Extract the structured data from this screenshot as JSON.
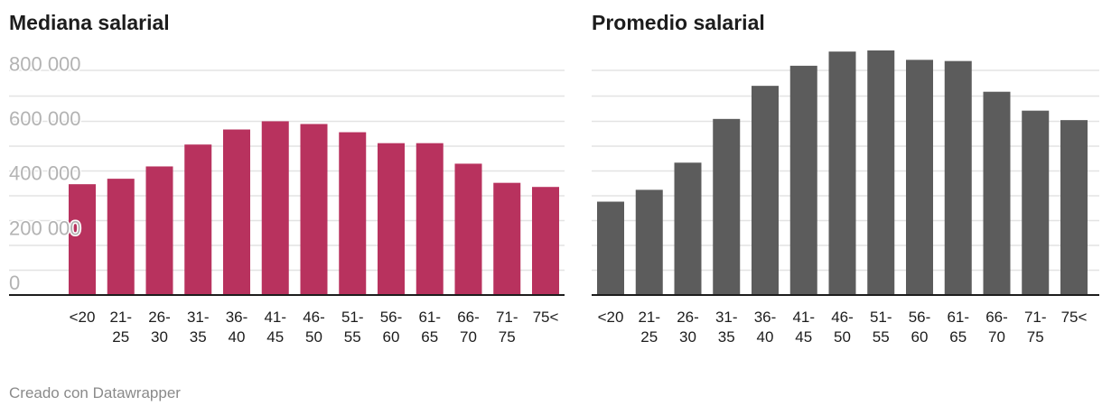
{
  "chart_data": [
    {
      "type": "bar",
      "title": "Mediana salarial",
      "color": "#b8325e",
      "categories": [
        [
          "<20"
        ],
        [
          "21-",
          "25"
        ],
        [
          "26-",
          "30"
        ],
        [
          "31-",
          "35"
        ],
        [
          "36-",
          "40"
        ],
        [
          "41-",
          "45"
        ],
        [
          "46-",
          "50"
        ],
        [
          "51-",
          "55"
        ],
        [
          "56-",
          "60"
        ],
        [
          "61-",
          "65"
        ],
        [
          "66-",
          "70"
        ],
        [
          "71-",
          "75"
        ],
        [
          "75<"
        ]
      ],
      "values": [
        405000,
        425000,
        470000,
        550000,
        605000,
        635000,
        625000,
        595000,
        555000,
        555000,
        480000,
        410000,
        395000
      ],
      "ylim": [
        0,
        920000
      ],
      "yticks": [
        0,
        200000,
        400000,
        600000,
        800000
      ],
      "ytick_labels": [
        "0",
        "200 000",
        "400 000",
        "600 000",
        "800 000"
      ],
      "xlabel": "",
      "ylabel": "",
      "grid": true
    },
    {
      "type": "bar",
      "title": "Promedio salarial",
      "color": "#5c5c5c",
      "categories": [
        [
          "<20"
        ],
        [
          "21-",
          "25"
        ],
        [
          "26-",
          "30"
        ],
        [
          "31-",
          "35"
        ],
        [
          "36-",
          "40"
        ],
        [
          "41-",
          "45"
        ],
        [
          "46-",
          "50"
        ],
        [
          "51-",
          "55"
        ],
        [
          "56-",
          "60"
        ],
        [
          "61-",
          "65"
        ],
        [
          "66-",
          "70"
        ],
        [
          "71-",
          "75"
        ],
        [
          "75<"
        ]
      ],
      "values": [
        395000,
        445000,
        560000,
        745000,
        885000,
        970000,
        1030000,
        1035000,
        995000,
        990000,
        860000,
        780000,
        740000
      ],
      "ylim": [
        0,
        1065000
      ],
      "xlabel": "",
      "ylabel": "",
      "grid": true
    }
  ],
  "footer": "Creado con Datawrapper"
}
